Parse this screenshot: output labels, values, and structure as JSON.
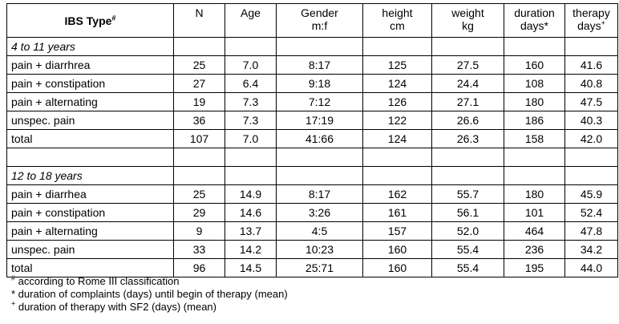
{
  "table": {
    "headers": [
      {
        "line1": "IBS Type",
        "sup": "#"
      },
      {
        "line1": "N"
      },
      {
        "line1": "Age"
      },
      {
        "line1": "Gender",
        "line2": "m:f"
      },
      {
        "line1": "height",
        "line2": "cm"
      },
      {
        "line1": "weight",
        "line2": "kg"
      },
      {
        "line1": "duration",
        "line2": "days*"
      },
      {
        "line1": "therapy",
        "line2": "days",
        "sup": "+"
      }
    ],
    "sections": [
      {
        "label": "4 to 11 years",
        "rows": [
          {
            "type": "pain + diarrhrea",
            "n": "25",
            "age": "7.0",
            "gender": "8:17",
            "height": "125",
            "weight": "27.5",
            "duration": "160",
            "therapy": "41.6"
          },
          {
            "type": "pain + constipation",
            "n": "27",
            "age": "6.4",
            "gender": "9:18",
            "height": "124",
            "weight": "24.4",
            "duration": "108",
            "therapy": "40.8"
          },
          {
            "type": "pain + alternating",
            "n": "19",
            "age": "7.3",
            "gender": "7:12",
            "height": "126",
            "weight": "27.1",
            "duration": "180",
            "therapy": "47.5"
          },
          {
            "type": "unspec. pain",
            "n": "36",
            "age": "7.3",
            "gender": "17:19",
            "height": "122",
            "weight": "26.6",
            "duration": "186",
            "therapy": "40.3"
          },
          {
            "type": "total",
            "n": "107",
            "age": "7.0",
            "gender": "41:66",
            "height": "124",
            "weight": "26.3",
            "duration": "158",
            "therapy": "42.0"
          }
        ]
      },
      {
        "label": "12 to 18 years",
        "rows": [
          {
            "type": "pain + diarrhea",
            "n": "25",
            "age": "14.9",
            "gender": "8:17",
            "height": "162",
            "weight": "55.7",
            "duration": "180",
            "therapy": "45.9"
          },
          {
            "type": "pain + constipation",
            "n": "29",
            "age": "14.6",
            "gender": "3:26",
            "height": "161",
            "weight": "56.1",
            "duration": "101",
            "therapy": "52.4"
          },
          {
            "type": "pain + alternating",
            "n": "9",
            "age": "13.7",
            "gender": "4:5",
            "height": "157",
            "weight": "52.0",
            "duration": "464",
            "therapy": "47.8"
          },
          {
            "type": "unspec. pain",
            "n": "33",
            "age": "14.2",
            "gender": "10:23",
            "height": "160",
            "weight": "55.4",
            "duration": "236",
            "therapy": "34.2"
          },
          {
            "type": "total",
            "n": "96",
            "age": "14.5",
            "gender": "25:71",
            "height": "160",
            "weight": "55.4",
            "duration": "195",
            "therapy": "44.0"
          }
        ]
      }
    ]
  },
  "footnotes": [
    {
      "mark": "#",
      "text": " according to Rome III classification"
    },
    {
      "mark": "* ",
      "text": "duration of complaints (days) until begin of therapy (mean)",
      "plain": true
    },
    {
      "mark": "+",
      "text": " duration of therapy with SF2 (days) (mean)"
    }
  ]
}
